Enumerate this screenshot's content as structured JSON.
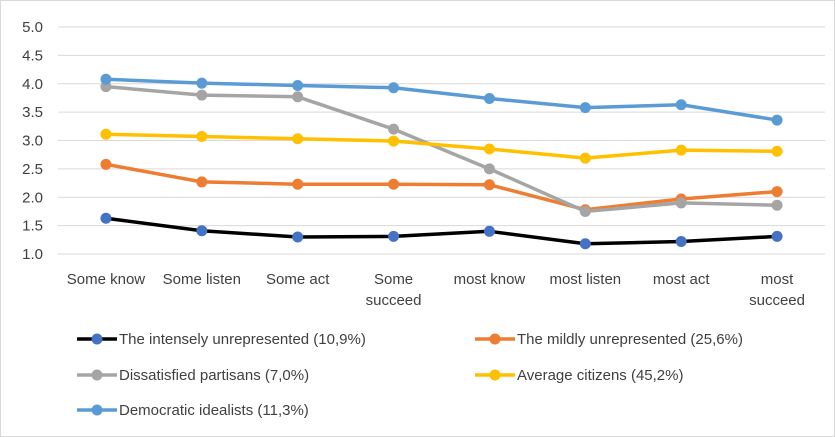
{
  "chart_data": {
    "type": "line",
    "title": "",
    "xlabel": "",
    "ylabel": "",
    "ylim": [
      1.0,
      5.0
    ],
    "yticks": [
      "5.0",
      "4.5",
      "4.0",
      "3.5",
      "3.0",
      "2.5",
      "2.0",
      "1.5",
      "1.0"
    ],
    "grid": "horizontal",
    "legend_position": "bottom",
    "categories": [
      [
        "Some know"
      ],
      [
        "Some listen"
      ],
      [
        "Some act"
      ],
      [
        "Some",
        "succeed"
      ],
      [
        "most know"
      ],
      [
        "most listen"
      ],
      [
        "most act"
      ],
      [
        "most",
        "succeed"
      ]
    ],
    "series": [
      {
        "name": "The intensely unrepresented (10,9%)",
        "color": "#000000",
        "marker": "#4472c4",
        "values": [
          1.63,
          1.41,
          1.3,
          1.31,
          1.4,
          1.18,
          1.22,
          1.31
        ]
      },
      {
        "name": "The mildly unrepresented (25,6%)",
        "color": "#ed7d31",
        "marker": "#ed7d31",
        "values": [
          2.58,
          2.27,
          2.23,
          2.23,
          2.22,
          1.78,
          1.97,
          2.1
        ]
      },
      {
        "name": "Dissatisfied partisans (7,0%)",
        "color": "#a5a5a5",
        "marker": "#a5a5a5",
        "values": [
          3.95,
          3.8,
          3.77,
          3.2,
          2.5,
          1.75,
          1.9,
          1.86
        ]
      },
      {
        "name": "Average citizens (45,2%)",
        "color": "#ffc000",
        "marker": "#ffc000",
        "values": [
          3.11,
          3.07,
          3.03,
          2.99,
          2.85,
          2.69,
          2.83,
          2.81
        ]
      },
      {
        "name": "Democratic idealists (11,3%)",
        "color": "#5b9bd5",
        "marker": "#5b9bd5",
        "values": [
          4.08,
          4.01,
          3.97,
          3.93,
          3.74,
          3.58,
          3.63,
          3.36
        ]
      }
    ]
  }
}
